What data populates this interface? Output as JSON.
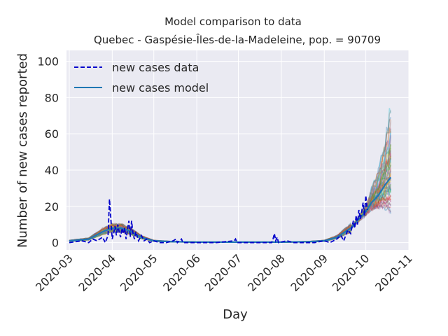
{
  "chart_data": {
    "type": "line",
    "title_line1": "Model comparison to data",
    "title_line2": "Quebec - Gaspésie-Îles-de-la-Madeleine, pop. = 90709",
    "xlabel": "Day",
    "ylabel": "Number of new cases reported",
    "x_ticks": [
      "2020-03",
      "2020-04",
      "2020-05",
      "2020-06",
      "2020-07",
      "2020-08",
      "2020-09",
      "2020-10",
      "2020-11"
    ],
    "y_ticks": [
      0,
      20,
      40,
      60,
      80,
      100
    ],
    "xlim": [
      "2020-02-28",
      "2020-11-01"
    ],
    "ylim": [
      -4,
      106
    ],
    "grid": true,
    "legend": {
      "placement": "top-left",
      "entries": [
        {
          "label": "new cases data",
          "style": "dashed",
          "color": "#0000cc"
        },
        {
          "label": "new cases model",
          "style": "solid",
          "color": "#1f77b4"
        }
      ]
    },
    "series": [
      {
        "name": "new cases data",
        "points": [
          [
            "2020-03-01",
            0
          ],
          [
            "2020-03-10",
            1
          ],
          [
            "2020-03-15",
            0
          ],
          [
            "2020-03-18",
            2
          ],
          [
            "2020-03-21",
            1
          ],
          [
            "2020-03-25",
            3
          ],
          [
            "2020-03-27",
            0
          ],
          [
            "2020-03-29",
            4
          ],
          [
            "2020-03-30",
            24
          ],
          [
            "2020-03-31",
            13
          ],
          [
            "2020-04-01",
            2
          ],
          [
            "2020-04-02",
            5
          ],
          [
            "2020-04-03",
            9
          ],
          [
            "2020-04-04",
            4
          ],
          [
            "2020-04-05",
            10
          ],
          [
            "2020-04-06",
            6
          ],
          [
            "2020-04-07",
            3
          ],
          [
            "2020-04-08",
            8
          ],
          [
            "2020-04-09",
            5
          ],
          [
            "2020-04-10",
            8
          ],
          [
            "2020-04-11",
            2
          ],
          [
            "2020-04-12",
            7
          ],
          [
            "2020-04-13",
            12
          ],
          [
            "2020-04-14",
            3
          ],
          [
            "2020-04-15",
            12
          ],
          [
            "2020-04-16",
            5
          ],
          [
            "2020-04-17",
            2
          ],
          [
            "2020-04-18",
            6
          ],
          [
            "2020-04-20",
            1
          ],
          [
            "2020-04-22",
            4
          ],
          [
            "2020-04-24",
            1
          ],
          [
            "2020-04-26",
            2
          ],
          [
            "2020-04-28",
            0
          ],
          [
            "2020-05-01",
            1
          ],
          [
            "2020-05-05",
            0
          ],
          [
            "2020-05-10",
            0
          ],
          [
            "2020-05-15",
            1
          ],
          [
            "2020-05-17",
            2
          ],
          [
            "2020-05-18",
            0
          ],
          [
            "2020-05-21",
            2
          ],
          [
            "2020-05-22",
            0
          ],
          [
            "2020-06-01",
            0
          ],
          [
            "2020-06-15",
            0
          ],
          [
            "2020-06-28",
            1
          ],
          [
            "2020-06-29",
            2
          ],
          [
            "2020-06-30",
            0
          ],
          [
            "2020-07-15",
            0
          ],
          [
            "2020-07-25",
            0
          ],
          [
            "2020-07-26",
            2
          ],
          [
            "2020-07-27",
            5
          ],
          [
            "2020-07-28",
            1
          ],
          [
            "2020-07-29",
            3
          ],
          [
            "2020-07-30",
            0
          ],
          [
            "2020-08-05",
            1
          ],
          [
            "2020-08-10",
            0
          ],
          [
            "2020-08-25",
            0
          ],
          [
            "2020-09-01",
            1
          ],
          [
            "2020-09-05",
            0
          ],
          [
            "2020-09-10",
            2
          ],
          [
            "2020-09-13",
            4
          ],
          [
            "2020-09-15",
            1
          ],
          [
            "2020-09-18",
            7
          ],
          [
            "2020-09-20",
            5
          ],
          [
            "2020-09-22",
            12
          ],
          [
            "2020-09-23",
            8
          ],
          [
            "2020-09-24",
            15
          ],
          [
            "2020-09-25",
            10
          ],
          [
            "2020-09-26",
            18
          ],
          [
            "2020-09-27",
            13
          ],
          [
            "2020-09-28",
            17
          ],
          [
            "2020-09-29",
            22
          ],
          [
            "2020-09-30",
            15
          ],
          [
            "2020-10-01",
            26
          ],
          [
            "2020-10-02",
            18
          ]
        ]
      },
      {
        "name": "new cases model",
        "points": [
          [
            "2020-03-01",
            1
          ],
          [
            "2020-03-15",
            2
          ],
          [
            "2020-03-25",
            6
          ],
          [
            "2020-04-01",
            8
          ],
          [
            "2020-04-08",
            8
          ],
          [
            "2020-04-15",
            6
          ],
          [
            "2020-04-22",
            3
          ],
          [
            "2020-05-01",
            1
          ],
          [
            "2020-05-15",
            0.5
          ],
          [
            "2020-06-01",
            0.3
          ],
          [
            "2020-07-01",
            0.3
          ],
          [
            "2020-08-01",
            0.3
          ],
          [
            "2020-08-20",
            0.5
          ],
          [
            "2020-09-01",
            1
          ],
          [
            "2020-09-10",
            3
          ],
          [
            "2020-09-20",
            8
          ],
          [
            "2020-10-01",
            17
          ],
          [
            "2020-10-05",
            22
          ],
          [
            "2020-10-10",
            26
          ],
          [
            "2020-10-15",
            32
          ],
          [
            "2020-10-19",
            36
          ]
        ]
      }
    ]
  }
}
